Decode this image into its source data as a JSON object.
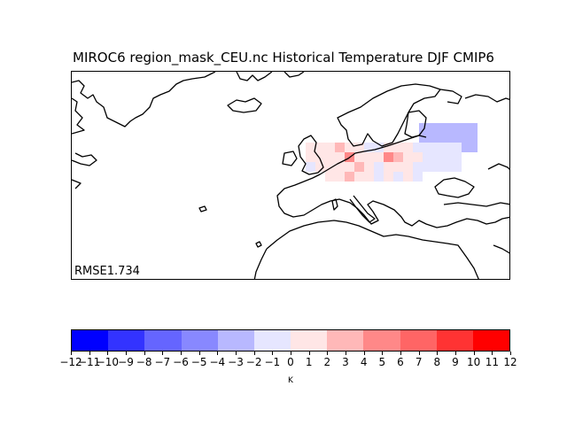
{
  "title": "MIROC6 region_mask_CEU.nc Historical Temperature DJF CMIP6",
  "rmse_label": "RMSE1.734",
  "colorbar": {
    "unit": "K",
    "ticks": [
      "−12",
      "−11",
      "−10",
      "−9",
      "−8",
      "−7",
      "−6",
      "−5",
      "−4",
      "−3",
      "−2",
      "−1",
      "0",
      "1",
      "2",
      "3",
      "4",
      "5",
      "6",
      "7",
      "8",
      "9",
      "10",
      "11",
      "12"
    ],
    "colors": [
      "#0000ff",
      "#3333ff",
      "#6565ff",
      "#8888ff",
      "#b8b8ff",
      "#e6e6ff",
      "#ffe6e6",
      "#ffb8b8",
      "#ff8888",
      "#ff6565",
      "#ff3333",
      "#ff0000"
    ]
  },
  "map": {
    "grid_cells": [
      {
        "col": 0,
        "row": 0,
        "level": "-4"
      },
      {
        "col": 1,
        "row": 0,
        "level": "-4"
      },
      {
        "col": 2,
        "row": 0,
        "level": "-4"
      },
      {
        "col": 3,
        "row": 0,
        "level": "-4"
      },
      {
        "col": 4,
        "row": 0,
        "level": "-4"
      },
      {
        "col": 5,
        "row": 0,
        "level": "-4"
      },
      {
        "col": 0,
        "row": 1,
        "level": "-4"
      },
      {
        "col": 1,
        "row": 1,
        "level": "-4"
      },
      {
        "col": 2,
        "row": 1,
        "level": "-4"
      },
      {
        "col": 3,
        "row": 1,
        "level": "-4"
      },
      {
        "col": 4,
        "row": 1,
        "level": "-4"
      },
      {
        "col": 5,
        "row": 1,
        "level": "-4"
      },
      {
        "col": 0,
        "row": 2,
        "level": "-4"
      },
      {
        "col": 1,
        "row": 2,
        "level": "-4"
      },
      {
        "col": 2,
        "row": 2,
        "level": "-4"
      },
      {
        "col": 3,
        "row": 2,
        "level": "-4"
      },
      {
        "col": 4,
        "row": 2,
        "level": "-4"
      },
      {
        "col": 5,
        "row": 2,
        "level": "-4"
      }
    ]
  }
}
